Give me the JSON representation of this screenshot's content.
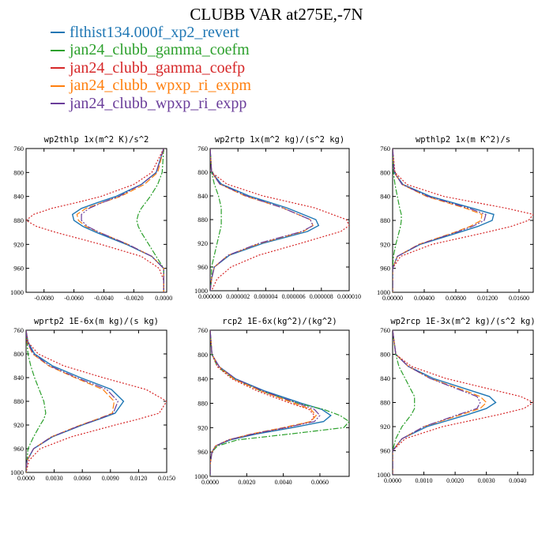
{
  "title": "CLUBB VAR at275E,-7N",
  "legend": [
    {
      "label": "flthist134.000f_xp2_revert",
      "color": "#1f77b4"
    },
    {
      "label": "jan24_clubb_gamma_coefm",
      "color": "#2ca02c"
    },
    {
      "label": "jan24_clubb_gamma_coefp",
      "color": "#d62728"
    },
    {
      "label": "jan24_clubb_wpxp_ri_expm",
      "color": "#ff7f0e"
    },
    {
      "label": "jan24_clubb_wpxp_ri_expp",
      "color": "#6a3d9a"
    }
  ],
  "chart_data": [
    {
      "type": "line",
      "title": "wp2thlp  1x(m^2 K)/s^2",
      "xlim": [
        -0.0092,
        0.0002
      ],
      "ylim": [
        760,
        1000
      ],
      "y_inverted": true,
      "xticks": [
        -0.008,
        -0.006,
        -0.004,
        -0.002,
        0.0
      ],
      "xtick_labels": [
        "-0.0080",
        "-0.0060",
        "-0.0040",
        "-0.0020",
        "0.0000"
      ],
      "yticks": [
        760,
        800,
        840,
        880,
        920,
        960,
        1000
      ],
      "y": [
        760,
        800,
        820,
        840,
        850,
        860,
        870,
        880,
        890,
        900,
        920,
        940,
        960,
        980,
        1000
      ],
      "series": [
        {
          "name": "flthist134.000f_xp2_revert",
          "values": [
            0.0,
            -0.0005,
            -0.0015,
            -0.0032,
            -0.0044,
            -0.0055,
            -0.0061,
            -0.006,
            -0.0054,
            -0.0045,
            -0.0025,
            -0.0008,
            0.0,
            0.0,
            0.0
          ]
        },
        {
          "name": "jan24_clubb_gamma_coefm",
          "values": [
            0.0,
            -0.0001,
            -0.0004,
            -0.0009,
            -0.0012,
            -0.0015,
            -0.0017,
            -0.0018,
            -0.0017,
            -0.0015,
            -0.001,
            -0.0005,
            0.0,
            0.0,
            0.0
          ]
        },
        {
          "name": "jan24_clubb_gamma_coefp",
          "values": [
            0.0,
            -0.0008,
            -0.002,
            -0.0042,
            -0.0058,
            -0.0075,
            -0.0087,
            -0.0092,
            -0.0085,
            -0.0072,
            -0.0042,
            -0.0015,
            -0.0003,
            0.0,
            0.0
          ]
        },
        {
          "name": "jan24_clubb_wpxp_ri_expm",
          "values": [
            0.0,
            -0.0004,
            -0.0013,
            -0.0029,
            -0.0041,
            -0.0052,
            -0.0058,
            -0.0057,
            -0.0052,
            -0.0043,
            -0.0024,
            -0.0008,
            0.0,
            0.0,
            0.0
          ]
        },
        {
          "name": "jan24_clubb_wpxp_ri_expp",
          "values": [
            0.0,
            -0.0005,
            -0.0015,
            -0.003,
            -0.0041,
            -0.005,
            -0.0055,
            -0.0055,
            -0.0051,
            -0.0043,
            -0.0024,
            -0.0008,
            0.0,
            0.0,
            0.0
          ]
        }
      ]
    },
    {
      "type": "line",
      "title": "wp2rtp  1x(m^2 kg)/(s^2 kg)",
      "xlim": [
        0.0,
        1e-05
      ],
      "ylim": [
        760,
        1000
      ],
      "y_inverted": true,
      "xticks": [
        0.0,
        2e-06,
        4e-06,
        6e-06,
        8e-06,
        1e-05
      ],
      "xtick_labels": [
        "0.000000",
        "0.000002",
        "0.000004",
        "0.000006",
        "0.000008",
        "0.000010"
      ],
      "yticks": [
        760,
        800,
        840,
        880,
        920,
        960,
        1000
      ],
      "y": [
        760,
        800,
        820,
        840,
        860,
        880,
        890,
        900,
        920,
        940,
        960,
        980,
        1000
      ],
      "series": [
        {
          "name": "flthist134.000f_xp2_revert",
          "values": [
            0.0,
            1e-07,
            8e-07,
            2.8e-06,
            5.5e-06,
            7.6e-06,
            7.8e-06,
            7e-06,
            3.8e-06,
            1.4e-06,
            3e-07,
            1e-07,
            0.0
          ],
          "unit_note": ""
        },
        {
          "name": "jan24_clubb_gamma_coefm",
          "values": [
            0.0,
            1e-07,
            3e-07,
            6e-07,
            8e-07,
            8e-07,
            8e-07,
            7e-07,
            5e-07,
            3e-07,
            1e-07,
            1e-07,
            0.0
          ]
        },
        {
          "name": "jan24_clubb_gamma_coefp",
          "values": [
            0.0,
            1e-07,
            1.2e-06,
            3.8e-06,
            7.5e-06,
            9.8e-06,
            1e-05,
            9.4e-06,
            6.5e-06,
            3.5e-06,
            1.5e-06,
            5e-07,
            1e-07
          ]
        },
        {
          "name": "jan24_clubb_wpxp_ri_expm",
          "values": [
            0.0,
            1e-07,
            7e-07,
            2.5e-06,
            5.2e-06,
            7.2e-06,
            7.4e-06,
            6.7e-06,
            3.6e-06,
            1.3e-06,
            3e-07,
            1e-07,
            0.0
          ]
        },
        {
          "name": "jan24_clubb_wpxp_ri_expp",
          "values": [
            0.0,
            1e-07,
            7e-07,
            2.6e-06,
            5.2e-06,
            7.2e-06,
            7.4e-06,
            6.6e-06,
            3.5e-06,
            1.3e-06,
            3e-07,
            1e-07,
            0.0
          ]
        }
      ]
    },
    {
      "type": "line",
      "title": "wpthlp2  1x(m K^2)/s",
      "xlim": [
        0.0,
        0.0178
      ],
      "ylim": [
        760,
        1000
      ],
      "y_inverted": true,
      "xticks": [
        0.0,
        0.004,
        0.008,
        0.012,
        0.016
      ],
      "xtick_labels": [
        "0.00000",
        "0.00400",
        "0.00800",
        "0.01200",
        "0.01600"
      ],
      "yticks": [
        760,
        800,
        840,
        880,
        920,
        960,
        1000
      ],
      "y": [
        760,
        800,
        820,
        840,
        860,
        870,
        880,
        890,
        900,
        920,
        940,
        960,
        980,
        1000
      ],
      "series": [
        {
          "name": "flthist134.000f_xp2_revert",
          "values": [
            0.0,
            0.0002,
            0.0013,
            0.0048,
            0.0102,
            0.0128,
            0.0126,
            0.0108,
            0.0084,
            0.0035,
            0.0006,
            0.0,
            0.0,
            0.0
          ]
        },
        {
          "name": "jan24_clubb_gamma_coefm",
          "values": [
            0.0,
            0.0001,
            0.0003,
            0.0006,
            0.0009,
            0.0011,
            0.0011,
            0.001,
            0.0008,
            0.0004,
            0.0001,
            0.0,
            0.0,
            0.0
          ]
        },
        {
          "name": "jan24_clubb_gamma_coefp",
          "values": [
            0.0,
            0.0003,
            0.0018,
            0.0065,
            0.0145,
            0.0178,
            0.0172,
            0.015,
            0.0118,
            0.005,
            0.001,
            0.0,
            0.0,
            0.0
          ]
        },
        {
          "name": "jan24_clubb_wpxp_ri_expm",
          "values": [
            0.0,
            0.0002,
            0.0012,
            0.0043,
            0.0093,
            0.0113,
            0.0112,
            0.0098,
            0.0078,
            0.0033,
            0.0006,
            0.0,
            0.0,
            0.0
          ]
        },
        {
          "name": "jan24_clubb_wpxp_ri_expp",
          "values": [
            0.0,
            0.0002,
            0.0012,
            0.0045,
            0.0097,
            0.0118,
            0.0116,
            0.0101,
            0.008,
            0.0034,
            0.0006,
            0.0,
            0.0,
            0.0
          ]
        }
      ]
    },
    {
      "type": "line",
      "title": "wprtp2  1E-6x(m kg)/(s kg)",
      "xlim": [
        0.0,
        0.015
      ],
      "ylim": [
        760,
        1000
      ],
      "y_inverted": true,
      "xticks": [
        0.0,
        0.003,
        0.006,
        0.009,
        0.012,
        0.015
      ],
      "xtick_labels": [
        "0.0000",
        "0.0030",
        "0.0060",
        "0.0090",
        "0.0120",
        "0.0150"
      ],
      "yticks": [
        760,
        800,
        840,
        880,
        920,
        960,
        1000
      ],
      "y": [
        760,
        780,
        800,
        820,
        840,
        860,
        880,
        900,
        910,
        920,
        940,
        960,
        980,
        1000
      ],
      "series": [
        {
          "name": "flthist134.000f_xp2_revert",
          "values": [
            0.0,
            0.0002,
            0.0009,
            0.0028,
            0.0058,
            0.0091,
            0.0104,
            0.0095,
            0.0078,
            0.006,
            0.0028,
            0.0008,
            0.0001,
            0.0
          ]
        },
        {
          "name": "jan24_clubb_gamma_coefm",
          "values": [
            0.0,
            0.0001,
            0.0002,
            0.0005,
            0.0009,
            0.0014,
            0.0019,
            0.0021,
            0.0019,
            0.0015,
            0.0008,
            0.0002,
            0.0001,
            0.0
          ]
        },
        {
          "name": "jan24_clubb_gamma_coefp",
          "values": [
            0.0,
            0.0002,
            0.0013,
            0.004,
            0.0082,
            0.0128,
            0.015,
            0.0142,
            0.012,
            0.0095,
            0.0048,
            0.0015,
            0.0003,
            0.0
          ]
        },
        {
          "name": "jan24_clubb_wpxp_ri_expm",
          "values": [
            0.0,
            0.0001,
            0.0007,
            0.0024,
            0.0052,
            0.0082,
            0.0094,
            0.0092,
            0.0076,
            0.0058,
            0.0027,
            0.0008,
            0.0001,
            0.0
          ]
        },
        {
          "name": "jan24_clubb_wpxp_ri_expp",
          "values": [
            0.0,
            0.0001,
            0.0008,
            0.0025,
            0.0054,
            0.0086,
            0.0098,
            0.0093,
            0.0077,
            0.0059,
            0.0027,
            0.0008,
            0.0001,
            0.0
          ]
        }
      ]
    },
    {
      "type": "line",
      "title": "rcp2  1E-6x(kg^2)/(kg^2)",
      "xlim": [
        0.0,
        0.0076
      ],
      "ylim": [
        760,
        1000
      ],
      "y_inverted": true,
      "xticks": [
        0.0,
        0.002,
        0.004,
        0.006
      ],
      "xtick_labels": [
        "0.0000",
        "0.0020",
        "0.0040",
        "0.0060"
      ],
      "yticks": [
        760,
        800,
        840,
        880,
        920,
        960,
        1000
      ],
      "y": [
        760,
        800,
        820,
        840,
        860,
        880,
        890,
        900,
        910,
        920,
        930,
        940,
        950,
        960,
        980,
        1000
      ],
      "series": [
        {
          "name": "flthist134.000f_xp2_revert",
          "values": [
            0.0,
            0.0001,
            0.0005,
            0.0014,
            0.003,
            0.005,
            0.0061,
            0.0066,
            0.0062,
            0.0045,
            0.0026,
            0.0011,
            0.0003,
            0.0001,
            0.0,
            0.0
          ]
        },
        {
          "name": "jan24_clubb_gamma_coefm",
          "values": [
            0.0,
            0.0001,
            0.0004,
            0.0013,
            0.0028,
            0.0048,
            0.0062,
            0.0071,
            0.0076,
            0.0073,
            0.0045,
            0.0015,
            0.0004,
            0.0001,
            0.0,
            0.0
          ]
        },
        {
          "name": "jan24_clubb_gamma_coefp",
          "values": [
            0.0,
            0.0001,
            0.0004,
            0.0012,
            0.0026,
            0.0044,
            0.0054,
            0.0057,
            0.0055,
            0.0042,
            0.0024,
            0.001,
            0.0003,
            0.0001,
            0.0,
            0.0
          ]
        },
        {
          "name": "jan24_clubb_wpxp_ri_expm",
          "values": [
            0.0,
            0.0001,
            0.0005,
            0.0013,
            0.0028,
            0.0046,
            0.0055,
            0.0058,
            0.0055,
            0.004,
            0.0023,
            0.001,
            0.0003,
            0.0001,
            0.0,
            0.0
          ]
        },
        {
          "name": "jan24_clubb_wpxp_ri_expp",
          "values": [
            0.0,
            0.0001,
            0.0005,
            0.0014,
            0.0029,
            0.0048,
            0.0057,
            0.006,
            0.0057,
            0.0041,
            0.0024,
            0.001,
            0.0003,
            0.0001,
            0.0,
            0.0
          ]
        }
      ]
    },
    {
      "type": "line",
      "title": "wp2rcp  1E-3x(m^2 kg)/(s^2 kg)",
      "xlim": [
        0.0,
        0.0045
      ],
      "ylim": [
        760,
        1000
      ],
      "y_inverted": true,
      "xticks": [
        0.0,
        0.001,
        0.002,
        0.003,
        0.004
      ],
      "xtick_labels": [
        "0.0000",
        "0.0010",
        "0.0020",
        "0.0030",
        "0.0040"
      ],
      "yticks": [
        760,
        800,
        840,
        880,
        920,
        960,
        1000
      ],
      "y": [
        760,
        800,
        820,
        840,
        860,
        870,
        880,
        890,
        900,
        920,
        940,
        960,
        980,
        1000
      ],
      "series": [
        {
          "name": "flthist134.000f_xp2_revert",
          "values": [
            0.0,
            0.0001,
            0.0005,
            0.0013,
            0.0025,
            0.0031,
            0.0033,
            0.003,
            0.0024,
            0.0011,
            0.0003,
            0.0,
            0.0,
            0.0
          ]
        },
        {
          "name": "jan24_clubb_gamma_coefm",
          "values": [
            0.0,
            0.0001,
            0.0002,
            0.0004,
            0.0006,
            0.0007,
            0.0007,
            0.0007,
            0.0006,
            0.0003,
            0.0001,
            0.0,
            0.0,
            0.0
          ]
        },
        {
          "name": "jan24_clubb_gamma_coefp",
          "values": [
            0.0,
            0.0001,
            0.0006,
            0.0017,
            0.0033,
            0.0041,
            0.0045,
            0.0042,
            0.0034,
            0.0016,
            0.0004,
            0.0,
            0.0,
            0.0
          ]
        },
        {
          "name": "jan24_clubb_wpxp_ri_expm",
          "values": [
            0.0,
            0.0001,
            0.0005,
            0.0012,
            0.0023,
            0.0028,
            0.003,
            0.0028,
            0.0022,
            0.001,
            0.0003,
            0.0,
            0.0,
            0.0
          ]
        },
        {
          "name": "jan24_clubb_wpxp_ri_expp",
          "values": [
            0.0,
            0.0001,
            0.0005,
            0.0012,
            0.0022,
            0.0027,
            0.0028,
            0.0027,
            0.0021,
            0.001,
            0.0003,
            0.0,
            0.0,
            0.0
          ]
        }
      ]
    }
  ]
}
